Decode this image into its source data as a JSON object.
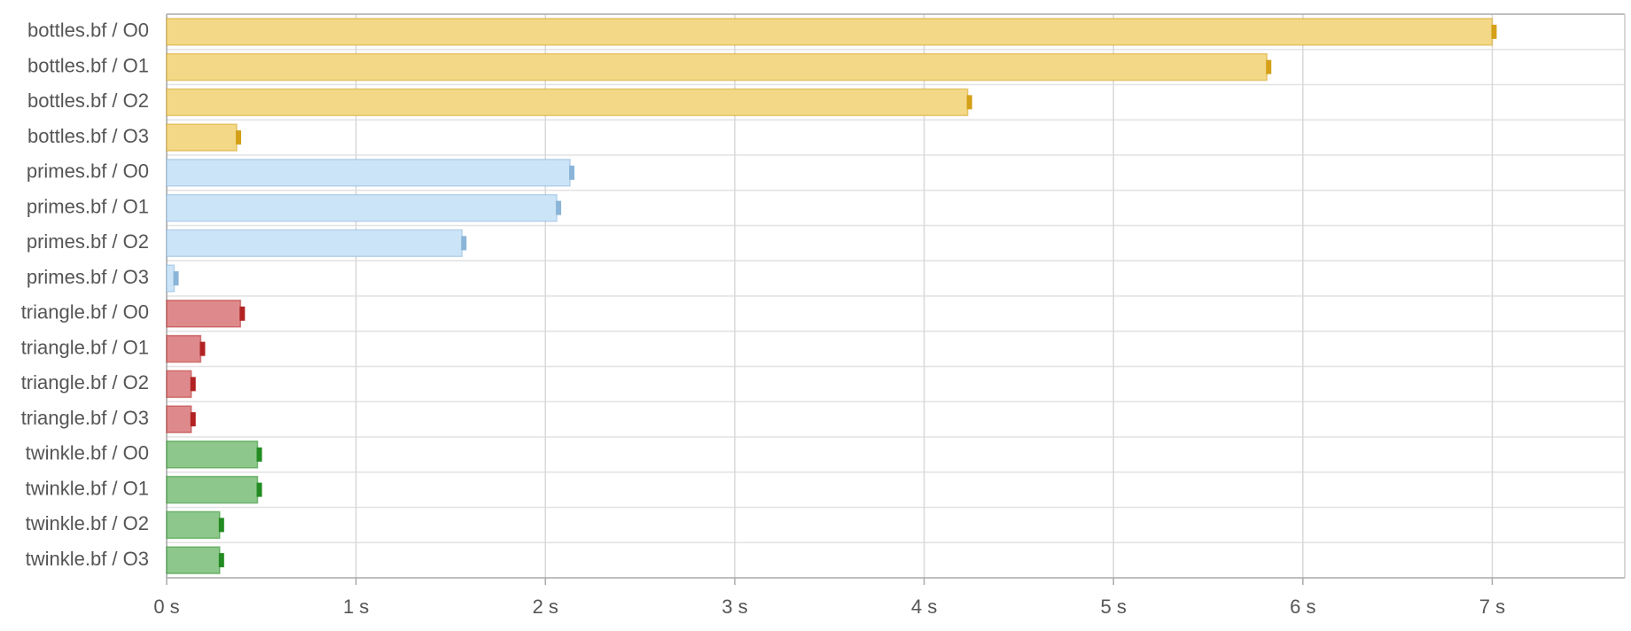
{
  "chart_data": {
    "type": "barh",
    "categories": [
      "bottles.bf / O0",
      "bottles.bf / O1",
      "bottles.bf / O2",
      "bottles.bf / O3",
      "primes.bf / O0",
      "primes.bf / O1",
      "primes.bf / O2",
      "primes.bf / O3",
      "triangle.bf / O0",
      "triangle.bf / O1",
      "triangle.bf / O2",
      "triangle.bf / O3",
      "twinkle.bf / O0",
      "twinkle.bf / O1",
      "twinkle.bf / O2",
      "twinkle.bf / O3"
    ],
    "values": [
      7.0,
      5.81,
      4.23,
      0.37,
      2.13,
      2.06,
      1.56,
      0.04,
      0.39,
      0.18,
      0.13,
      0.13,
      0.48,
      0.48,
      0.28,
      0.28
    ],
    "colors": [
      "#f3d888",
      "#f3d888",
      "#f3d888",
      "#f3d888",
      "#cce4f8",
      "#cce4f8",
      "#cce4f8",
      "#cce4f8",
      "#de8a8c",
      "#de8a8c",
      "#de8a8c",
      "#de8a8c",
      "#8dc78b",
      "#8dc78b",
      "#8dc78b",
      "#8dc78b"
    ],
    "marker_colors": [
      "#d4a017",
      "#d4a017",
      "#d4a017",
      "#d4a017",
      "#8ab4d8",
      "#8ab4d8",
      "#8ab4d8",
      "#8ab4d8",
      "#b22222",
      "#b22222",
      "#b22222",
      "#b22222",
      "#228b22",
      "#228b22",
      "#228b22",
      "#228b22"
    ],
    "xlim": [
      0,
      7.7
    ],
    "xticks": [
      {
        "value": 0,
        "label": "0 s"
      },
      {
        "value": 1,
        "label": "1 s"
      },
      {
        "value": 2,
        "label": "2 s"
      },
      {
        "value": 3,
        "label": "3 s"
      },
      {
        "value": 4,
        "label": "4 s"
      },
      {
        "value": 5,
        "label": "5 s"
      },
      {
        "value": 6,
        "label": "6 s"
      },
      {
        "value": 7,
        "label": "7 s"
      }
    ],
    "grid": true
  }
}
